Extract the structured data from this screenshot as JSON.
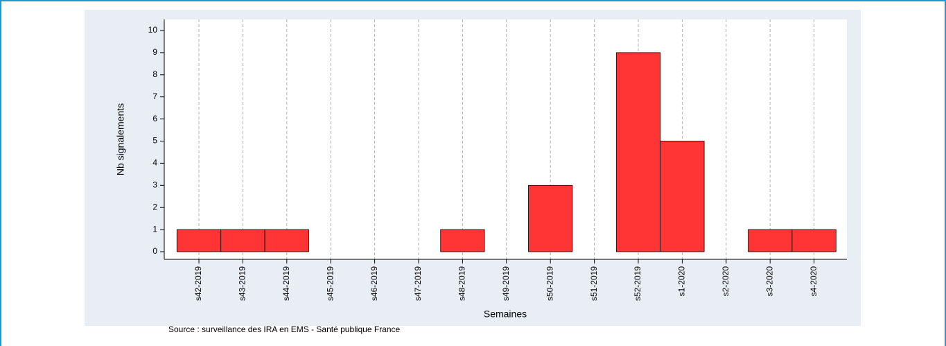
{
  "chart_data": {
    "type": "bar",
    "categories": [
      "s42-2019",
      "s43-2019",
      "s44-2019",
      "s45-2019",
      "s46-2019",
      "s47-2019",
      "s48-2019",
      "s49-2019",
      "s50-2019",
      "s51-2019",
      "s52-2019",
      "s1-2020",
      "s2-2020",
      "s3-2020",
      "s4-2020"
    ],
    "values": [
      1,
      1,
      1,
      0,
      0,
      0,
      1,
      0,
      3,
      0,
      9,
      5,
      0,
      1,
      1
    ],
    "color": "#ff3535",
    "ylim": [
      0,
      10
    ],
    "yticks": [
      0,
      1,
      2,
      3,
      4,
      5,
      6,
      7,
      8,
      9,
      10
    ],
    "grid": true,
    "xlabel": "Semaines",
    "ylabel": "Nb signalements",
    "source": "Source : surveillance des IRA en EMS - Santé publique France"
  }
}
